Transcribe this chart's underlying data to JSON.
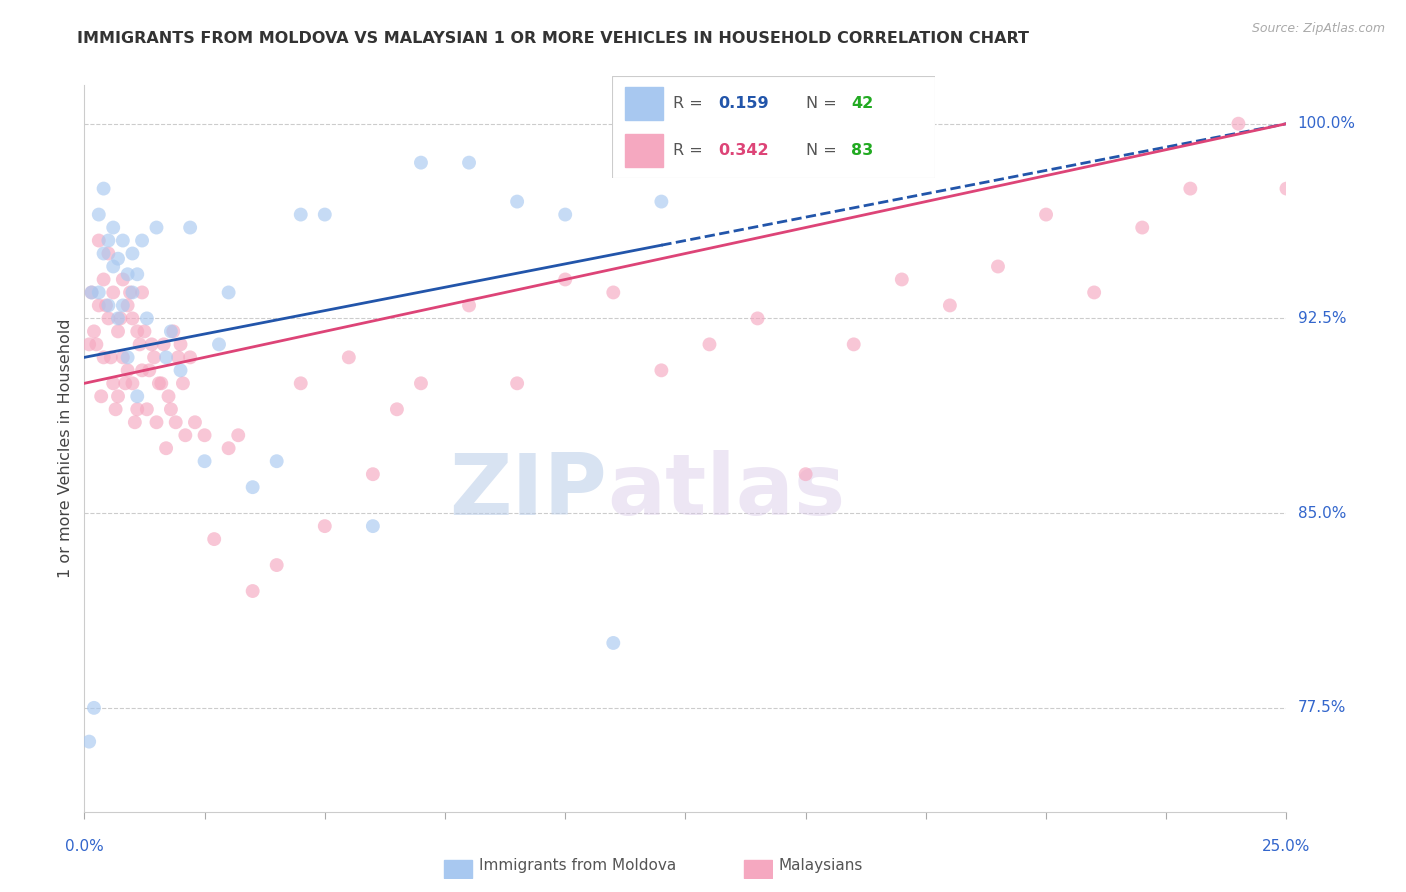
{
  "title": "IMMIGRANTS FROM MOLDOVA VS MALAYSIAN 1 OR MORE VEHICLES IN HOUSEHOLD CORRELATION CHART",
  "source": "Source: ZipAtlas.com",
  "ylabel": "1 or more Vehicles in Household",
  "right_yticks": [
    77.5,
    85.0,
    92.5,
    100.0
  ],
  "right_ytick_labels": [
    "77.5%",
    "85.0%",
    "92.5%",
    "100.0%"
  ],
  "xmin": 0.0,
  "xmax": 25.0,
  "ymin": 73.5,
  "ymax": 101.5,
  "blue_R": "0.159",
  "blue_N": "42",
  "pink_R": "0.342",
  "pink_N": "83",
  "blue_color": "#a8c8f0",
  "pink_color": "#f5a8c0",
  "blue_line_color": "#2255aa",
  "pink_line_color": "#dd4477",
  "scatter_alpha": 0.65,
  "marker_size": 100,
  "watermark_zip": "ZIP",
  "watermark_atlas": "atlas",
  "blue_scatter_x": [
    0.1,
    0.2,
    0.3,
    0.3,
    0.4,
    0.4,
    0.5,
    0.5,
    0.6,
    0.6,
    0.7,
    0.7,
    0.8,
    0.8,
    0.9,
    0.9,
    1.0,
    1.0,
    1.1,
    1.1,
    1.2,
    1.3,
    1.5,
    1.7,
    2.0,
    2.2,
    2.5,
    2.8,
    3.0,
    3.5,
    4.0,
    4.5,
    5.0,
    6.0,
    7.0,
    8.0,
    9.0,
    10.0,
    11.0,
    12.0,
    1.8,
    0.15
  ],
  "blue_scatter_y": [
    76.2,
    77.5,
    93.5,
    96.5,
    95.0,
    97.5,
    93.0,
    95.5,
    94.5,
    96.0,
    92.5,
    94.8,
    93.0,
    95.5,
    91.0,
    94.2,
    93.5,
    95.0,
    89.5,
    94.2,
    95.5,
    92.5,
    96.0,
    91.0,
    90.5,
    96.0,
    87.0,
    91.5,
    93.5,
    86.0,
    87.0,
    96.5,
    96.5,
    84.5,
    98.5,
    98.5,
    97.0,
    96.5,
    80.0,
    97.0,
    92.0,
    93.5
  ],
  "pink_scatter_x": [
    0.1,
    0.2,
    0.3,
    0.3,
    0.4,
    0.4,
    0.5,
    0.5,
    0.6,
    0.6,
    0.7,
    0.7,
    0.8,
    0.8,
    0.9,
    0.9,
    1.0,
    1.0,
    1.1,
    1.1,
    1.2,
    1.2,
    1.3,
    1.4,
    1.5,
    1.6,
    1.7,
    1.8,
    1.9,
    2.0,
    2.1,
    2.2,
    2.3,
    2.5,
    2.7,
    3.0,
    3.2,
    3.5,
    4.0,
    4.5,
    5.0,
    5.5,
    6.0,
    6.5,
    7.0,
    8.0,
    9.0,
    10.0,
    11.0,
    12.0,
    13.0,
    14.0,
    15.0,
    16.0,
    17.0,
    18.0,
    19.0,
    20.0,
    21.0,
    22.0,
    23.0,
    24.0,
    25.0,
    0.15,
    0.25,
    0.35,
    0.45,
    0.55,
    0.65,
    0.75,
    0.85,
    0.95,
    1.05,
    1.15,
    1.25,
    1.35,
    1.45,
    1.55,
    1.65,
    1.75,
    1.85,
    1.95,
    2.05
  ],
  "pink_scatter_y": [
    91.5,
    92.0,
    93.0,
    95.5,
    91.0,
    94.0,
    92.5,
    95.0,
    90.0,
    93.5,
    89.5,
    92.0,
    91.0,
    94.0,
    90.5,
    93.0,
    90.0,
    92.5,
    89.0,
    92.0,
    90.5,
    93.5,
    89.0,
    91.5,
    88.5,
    90.0,
    87.5,
    89.0,
    88.5,
    91.5,
    88.0,
    91.0,
    88.5,
    88.0,
    84.0,
    87.5,
    88.0,
    82.0,
    83.0,
    90.0,
    84.5,
    91.0,
    86.5,
    89.0,
    90.0,
    93.0,
    90.0,
    94.0,
    93.5,
    90.5,
    91.5,
    92.5,
    86.5,
    91.5,
    94.0,
    93.0,
    94.5,
    96.5,
    93.5,
    96.0,
    97.5,
    100.0,
    97.5,
    93.5,
    91.5,
    89.5,
    93.0,
    91.0,
    89.0,
    92.5,
    90.0,
    93.5,
    88.5,
    91.5,
    92.0,
    90.5,
    91.0,
    90.0,
    91.5,
    89.5,
    92.0,
    91.0,
    90.0
  ]
}
